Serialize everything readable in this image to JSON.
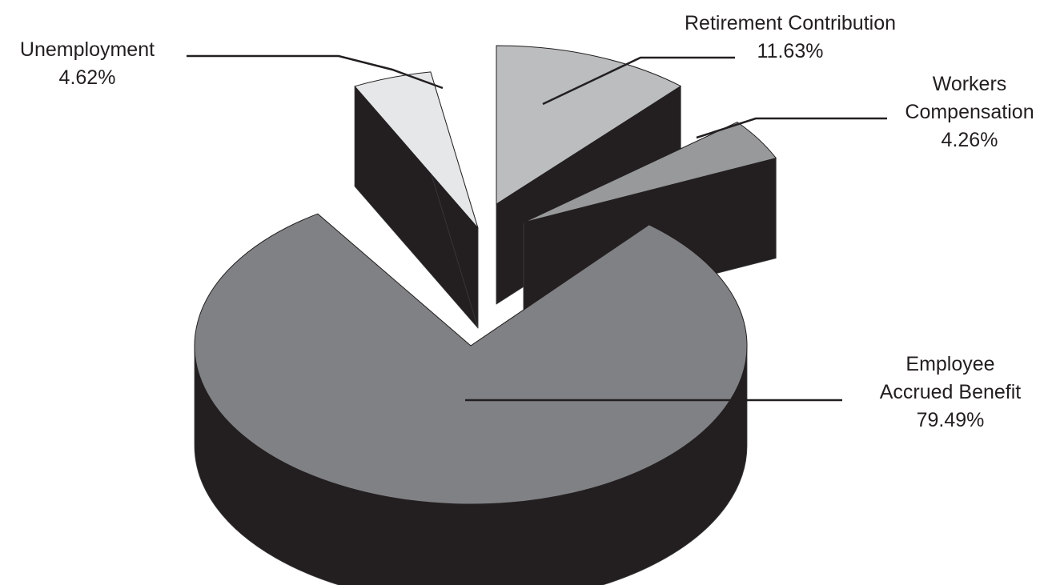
{
  "chart_data": {
    "type": "pie",
    "style": "3d-exploded",
    "slices": [
      {
        "label_lines": [
          "Employee",
          "Accrued Benefit"
        ],
        "value": 79.49,
        "value_text": "79.49%",
        "color": "#808184"
      },
      {
        "label_lines": [
          "Unemployment"
        ],
        "value": 4.62,
        "value_text": "4.62%",
        "color": "#e6e7e8"
      },
      {
        "label_lines": [
          "Retirement Contribution"
        ],
        "value": 11.63,
        "value_text": "11.63%",
        "color": "#bbbdbf"
      },
      {
        "label_lines": [
          "Workers",
          "Compensation"
        ],
        "value": 4.26,
        "value_text": "4.26%",
        "color": "#97999b"
      }
    ],
    "side_color": "#231f20",
    "legend": "none"
  }
}
